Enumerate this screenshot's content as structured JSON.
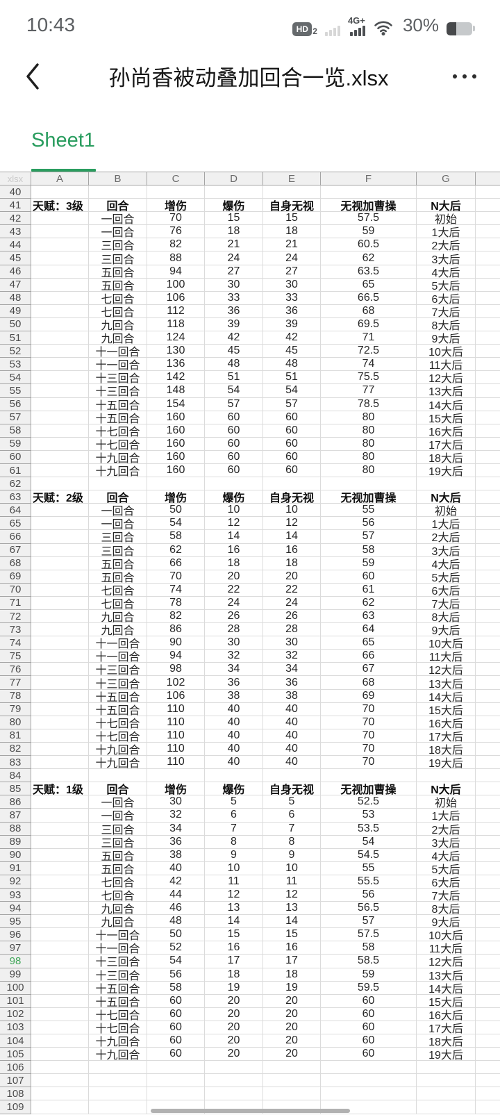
{
  "status_bar": {
    "time": "10:43",
    "hd": "HD",
    "hd_sub": "2",
    "network": "4G+",
    "battery": "30%"
  },
  "header": {
    "title": "孙尚香被动叠加回合一览.xlsx"
  },
  "sheet_tabs": {
    "active": "Sheet1"
  },
  "colors": {
    "accent_green": "#2a9d5f",
    "highlight_row_green": "#3fa658"
  },
  "grid": {
    "corner_label": "xlsx",
    "columns": [
      "A",
      "B",
      "C",
      "D",
      "E",
      "F",
      "G"
    ],
    "highlight_row": "98",
    "rows": [
      {
        "n": "40",
        "cells": [
          "",
          "",
          "",
          "",
          "",
          "",
          ""
        ]
      },
      {
        "n": "41",
        "bold": true,
        "cells": [
          "天赋：3级",
          "回合",
          "增伤",
          "爆伤",
          "自身无视",
          "无视加曹操",
          "N大后"
        ]
      },
      {
        "n": "42",
        "cells": [
          "",
          "一回合",
          "70",
          "15",
          "15",
          "57.5",
          "初始"
        ]
      },
      {
        "n": "43",
        "cells": [
          "",
          "一回合",
          "76",
          "18",
          "18",
          "59",
          "1大后"
        ]
      },
      {
        "n": "44",
        "cells": [
          "",
          "三回合",
          "82",
          "21",
          "21",
          "60.5",
          "2大后"
        ]
      },
      {
        "n": "45",
        "cells": [
          "",
          "三回合",
          "88",
          "24",
          "24",
          "62",
          "3大后"
        ]
      },
      {
        "n": "46",
        "cells": [
          "",
          "五回合",
          "94",
          "27",
          "27",
          "63.5",
          "4大后"
        ]
      },
      {
        "n": "47",
        "cells": [
          "",
          "五回合",
          "100",
          "30",
          "30",
          "65",
          "5大后"
        ]
      },
      {
        "n": "48",
        "cells": [
          "",
          "七回合",
          "106",
          "33",
          "33",
          "66.5",
          "6大后"
        ]
      },
      {
        "n": "49",
        "cells": [
          "",
          "七回合",
          "112",
          "36",
          "36",
          "68",
          "7大后"
        ]
      },
      {
        "n": "50",
        "cells": [
          "",
          "九回合",
          "118",
          "39",
          "39",
          "69.5",
          "8大后"
        ]
      },
      {
        "n": "51",
        "cells": [
          "",
          "九回合",
          "124",
          "42",
          "42",
          "71",
          "9大后"
        ]
      },
      {
        "n": "52",
        "cells": [
          "",
          "十一回合",
          "130",
          "45",
          "45",
          "72.5",
          "10大后"
        ]
      },
      {
        "n": "53",
        "cells": [
          "",
          "十一回合",
          "136",
          "48",
          "48",
          "74",
          "11大后"
        ]
      },
      {
        "n": "54",
        "cells": [
          "",
          "十三回合",
          "142",
          "51",
          "51",
          "75.5",
          "12大后"
        ]
      },
      {
        "n": "55",
        "cells": [
          "",
          "十三回合",
          "148",
          "54",
          "54",
          "77",
          "13大后"
        ]
      },
      {
        "n": "56",
        "cells": [
          "",
          "十五回合",
          "154",
          "57",
          "57",
          "78.5",
          "14大后"
        ]
      },
      {
        "n": "57",
        "cells": [
          "",
          "十五回合",
          "160",
          "60",
          "60",
          "80",
          "15大后"
        ]
      },
      {
        "n": "58",
        "cells": [
          "",
          "十七回合",
          "160",
          "60",
          "60",
          "80",
          "16大后"
        ]
      },
      {
        "n": "59",
        "cells": [
          "",
          "十七回合",
          "160",
          "60",
          "60",
          "80",
          "17大后"
        ]
      },
      {
        "n": "60",
        "cells": [
          "",
          "十九回合",
          "160",
          "60",
          "60",
          "80",
          "18大后"
        ]
      },
      {
        "n": "61",
        "cells": [
          "",
          "十九回合",
          "160",
          "60",
          "60",
          "80",
          "19大后"
        ]
      },
      {
        "n": "62",
        "cells": [
          "",
          "",
          "",
          "",
          "",
          "",
          ""
        ]
      },
      {
        "n": "63",
        "bold": true,
        "cells": [
          "天赋：2级",
          "回合",
          "增伤",
          "爆伤",
          "自身无视",
          "无视加曹操",
          "N大后"
        ]
      },
      {
        "n": "64",
        "cells": [
          "",
          "一回合",
          "50",
          "10",
          "10",
          "55",
          "初始"
        ]
      },
      {
        "n": "65",
        "cells": [
          "",
          "一回合",
          "54",
          "12",
          "12",
          "56",
          "1大后"
        ]
      },
      {
        "n": "66",
        "cells": [
          "",
          "三回合",
          "58",
          "14",
          "14",
          "57",
          "2大后"
        ]
      },
      {
        "n": "67",
        "cells": [
          "",
          "三回合",
          "62",
          "16",
          "16",
          "58",
          "3大后"
        ]
      },
      {
        "n": "68",
        "cells": [
          "",
          "五回合",
          "66",
          "18",
          "18",
          "59",
          "4大后"
        ]
      },
      {
        "n": "69",
        "cells": [
          "",
          "五回合",
          "70",
          "20",
          "20",
          "60",
          "5大后"
        ]
      },
      {
        "n": "70",
        "cells": [
          "",
          "七回合",
          "74",
          "22",
          "22",
          "61",
          "6大后"
        ]
      },
      {
        "n": "71",
        "cells": [
          "",
          "七回合",
          "78",
          "24",
          "24",
          "62",
          "7大后"
        ]
      },
      {
        "n": "72",
        "cells": [
          "",
          "九回合",
          "82",
          "26",
          "26",
          "63",
          "8大后"
        ]
      },
      {
        "n": "73",
        "cells": [
          "",
          "九回合",
          "86",
          "28",
          "28",
          "64",
          "9大后"
        ]
      },
      {
        "n": "74",
        "cells": [
          "",
          "十一回合",
          "90",
          "30",
          "30",
          "65",
          "10大后"
        ]
      },
      {
        "n": "75",
        "cells": [
          "",
          "十一回合",
          "94",
          "32",
          "32",
          "66",
          "11大后"
        ]
      },
      {
        "n": "76",
        "cells": [
          "",
          "十三回合",
          "98",
          "34",
          "34",
          "67",
          "12大后"
        ]
      },
      {
        "n": "77",
        "cells": [
          "",
          "十三回合",
          "102",
          "36",
          "36",
          "68",
          "13大后"
        ]
      },
      {
        "n": "78",
        "cells": [
          "",
          "十五回合",
          "106",
          "38",
          "38",
          "69",
          "14大后"
        ]
      },
      {
        "n": "79",
        "cells": [
          "",
          "十五回合",
          "110",
          "40",
          "40",
          "70",
          "15大后"
        ]
      },
      {
        "n": "80",
        "cells": [
          "",
          "十七回合",
          "110",
          "40",
          "40",
          "70",
          "16大后"
        ]
      },
      {
        "n": "81",
        "cells": [
          "",
          "十七回合",
          "110",
          "40",
          "40",
          "70",
          "17大后"
        ]
      },
      {
        "n": "82",
        "cells": [
          "",
          "十九回合",
          "110",
          "40",
          "40",
          "70",
          "18大后"
        ]
      },
      {
        "n": "83",
        "cells": [
          "",
          "十九回合",
          "110",
          "40",
          "40",
          "70",
          "19大后"
        ]
      },
      {
        "n": "84",
        "cells": [
          "",
          "",
          "",
          "",
          "",
          "",
          ""
        ]
      },
      {
        "n": "85",
        "bold": true,
        "cells": [
          "天赋：1级",
          "回合",
          "增伤",
          "爆伤",
          "自身无视",
          "无视加曹操",
          "N大后"
        ]
      },
      {
        "n": "86",
        "cells": [
          "",
          "一回合",
          "30",
          "5",
          "5",
          "52.5",
          "初始"
        ]
      },
      {
        "n": "87",
        "cells": [
          "",
          "一回合",
          "32",
          "6",
          "6",
          "53",
          "1大后"
        ]
      },
      {
        "n": "88",
        "cells": [
          "",
          "三回合",
          "34",
          "7",
          "7",
          "53.5",
          "2大后"
        ]
      },
      {
        "n": "89",
        "cells": [
          "",
          "三回合",
          "36",
          "8",
          "8",
          "54",
          "3大后"
        ]
      },
      {
        "n": "90",
        "cells": [
          "",
          "五回合",
          "38",
          "9",
          "9",
          "54.5",
          "4大后"
        ]
      },
      {
        "n": "91",
        "cells": [
          "",
          "五回合",
          "40",
          "10",
          "10",
          "55",
          "5大后"
        ]
      },
      {
        "n": "92",
        "cells": [
          "",
          "七回合",
          "42",
          "11",
          "11",
          "55.5",
          "6大后"
        ]
      },
      {
        "n": "93",
        "cells": [
          "",
          "七回合",
          "44",
          "12",
          "12",
          "56",
          "7大后"
        ]
      },
      {
        "n": "94",
        "cells": [
          "",
          "九回合",
          "46",
          "13",
          "13",
          "56.5",
          "8大后"
        ]
      },
      {
        "n": "95",
        "cells": [
          "",
          "九回合",
          "48",
          "14",
          "14",
          "57",
          "9大后"
        ]
      },
      {
        "n": "96",
        "cells": [
          "",
          "十一回合",
          "50",
          "15",
          "15",
          "57.5",
          "10大后"
        ]
      },
      {
        "n": "97",
        "cells": [
          "",
          "十一回合",
          "52",
          "16",
          "16",
          "58",
          "11大后"
        ]
      },
      {
        "n": "98",
        "cells": [
          "",
          "十三回合",
          "54",
          "17",
          "17",
          "58.5",
          "12大后"
        ]
      },
      {
        "n": "99",
        "cells": [
          "",
          "十三回合",
          "56",
          "18",
          "18",
          "59",
          "13大后"
        ]
      },
      {
        "n": "100",
        "cells": [
          "",
          "十五回合",
          "58",
          "19",
          "19",
          "59.5",
          "14大后"
        ]
      },
      {
        "n": "101",
        "cells": [
          "",
          "十五回合",
          "60",
          "20",
          "20",
          "60",
          "15大后"
        ]
      },
      {
        "n": "102",
        "cells": [
          "",
          "十七回合",
          "60",
          "20",
          "20",
          "60",
          "16大后"
        ]
      },
      {
        "n": "103",
        "cells": [
          "",
          "十七回合",
          "60",
          "20",
          "20",
          "60",
          "17大后"
        ]
      },
      {
        "n": "104",
        "cells": [
          "",
          "十九回合",
          "60",
          "20",
          "20",
          "60",
          "18大后"
        ]
      },
      {
        "n": "105",
        "cells": [
          "",
          "十九回合",
          "60",
          "20",
          "20",
          "60",
          "19大后"
        ]
      },
      {
        "n": "106",
        "cells": [
          "",
          "",
          "",
          "",
          "",
          "",
          ""
        ]
      },
      {
        "n": "107",
        "cells": [
          "",
          "",
          "",
          "",
          "",
          "",
          ""
        ]
      },
      {
        "n": "108",
        "cells": [
          "",
          "",
          "",
          "",
          "",
          "",
          ""
        ]
      },
      {
        "n": "109",
        "cells": [
          "",
          "",
          "",
          "",
          "",
          "",
          ""
        ]
      }
    ]
  }
}
